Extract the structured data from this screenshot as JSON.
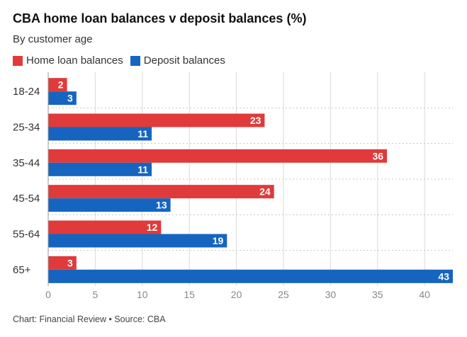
{
  "chart_data": {
    "type": "bar",
    "orientation": "horizontal",
    "title": "CBA home loan balances v deposit balances (%)",
    "subtitle": "By customer age",
    "categories": [
      "18-24",
      "25-34",
      "35-44",
      "45-54",
      "55-64",
      "65+"
    ],
    "series": [
      {
        "name": "Home loan balances",
        "color": "#e03a3a",
        "values": [
          2,
          23,
          36,
          24,
          12,
          3
        ]
      },
      {
        "name": "Deposit balances",
        "color": "#1565c0",
        "values": [
          3,
          11,
          11,
          13,
          19,
          43
        ]
      }
    ],
    "xlim": [
      0,
      43
    ],
    "xticks": [
      0,
      5,
      10,
      15,
      20,
      25,
      30,
      35,
      40
    ],
    "xlabel": "",
    "ylabel": "",
    "grid": true,
    "legend": "top-left"
  },
  "footer": {
    "source": "Chart: Financial Review • Source: CBA"
  }
}
